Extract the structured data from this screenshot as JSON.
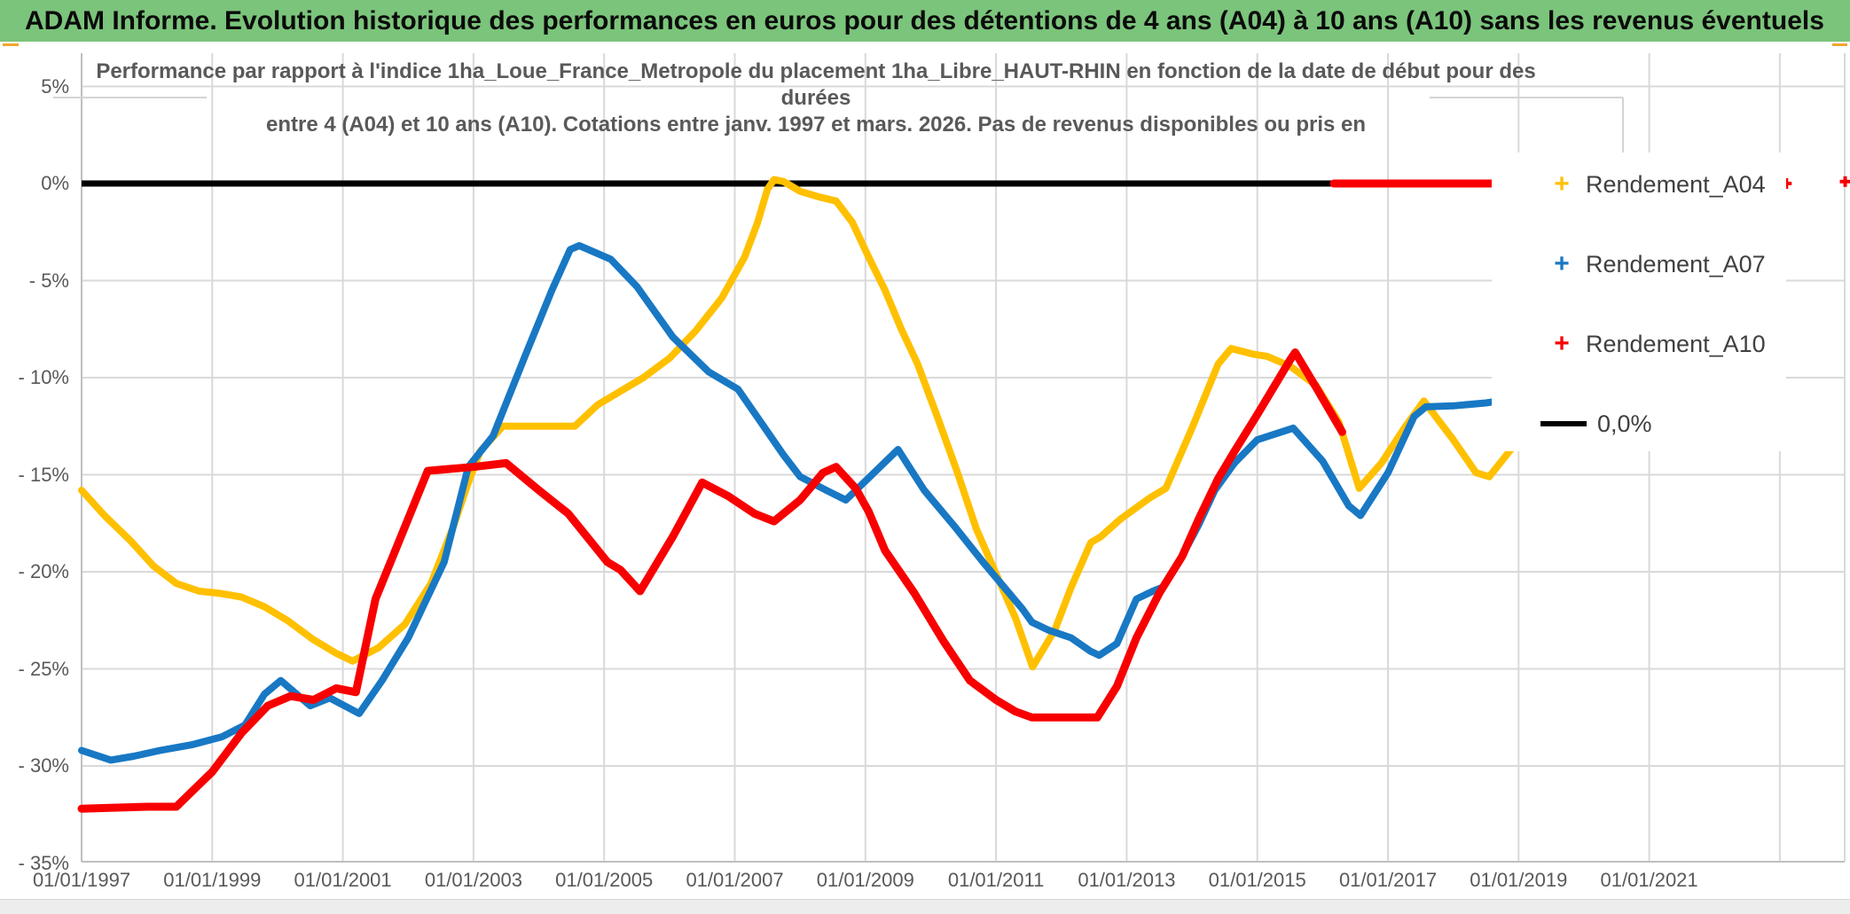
{
  "header": {
    "title": "ADAM Informe. Evolution historique des performances en euros pour des détentions de 4 ans (A04) à 10 ans (A10) sans les revenus éventuels",
    "bg_color": "#7BC47B"
  },
  "chart": {
    "title_lines": [
      "Performance par rapport à l'indice 1ha_Loue_France_Metropole du placement 1ha_Libre_HAUT-RHIN en fonction de la date de début pour des",
      "durées",
      "entre 4 (A04) et 10 ans (A10). Cotations entre janv. 1997 et mars. 2026. Pas de revenus disponibles ou pris en"
    ],
    "y_axis": {
      "ticks": [
        {
          "text": "5%",
          "value": 5
        },
        {
          "text": "0%",
          "value": 0
        },
        {
          "text": "- 5%",
          "value": -5
        },
        {
          "text": "- 10%",
          "value": -10
        },
        {
          "text": "- 15%",
          "value": -15
        },
        {
          "text": "- 20%",
          "value": -20
        },
        {
          "text": "- 25%",
          "value": -25
        },
        {
          "text": "- 30%",
          "value": -30
        },
        {
          "text": "- 35%",
          "value": -35
        }
      ]
    },
    "x_axis": {
      "ticks": [
        {
          "text": "01/01/1997",
          "year": 1997
        },
        {
          "text": "01/01/1999",
          "year": 1999
        },
        {
          "text": "01/01/2001",
          "year": 2001
        },
        {
          "text": "01/01/2003",
          "year": 2003
        },
        {
          "text": "01/01/2005",
          "year": 2005
        },
        {
          "text": "01/01/2007",
          "year": 2007
        },
        {
          "text": "01/01/2009",
          "year": 2009
        },
        {
          "text": "01/01/2011",
          "year": 2011
        },
        {
          "text": "01/01/2013",
          "year": 2013
        },
        {
          "text": "01/01/2015",
          "year": 2015
        },
        {
          "text": "01/01/2017",
          "year": 2017
        },
        {
          "text": "01/01/2019",
          "year": 2019
        },
        {
          "text": "01/01/2021",
          "year": 2021
        }
      ],
      "gridline_years": [
        1999,
        2001,
        2003,
        2005,
        2007,
        2009,
        2011,
        2013,
        2015,
        2017,
        2019,
        2021,
        2023
      ]
    },
    "legend": {
      "items": [
        {
          "label": "Rendement_A04",
          "marker": "plus",
          "color": "#FFC000"
        },
        {
          "label": "Rendement_A07",
          "marker": "plus",
          "color": "#1878C4"
        },
        {
          "label": "Rendement_A10",
          "marker": "plus",
          "color": "#F80000"
        },
        {
          "label": "0,0%",
          "marker": "line",
          "color": "#000000"
        }
      ]
    }
  },
  "chart_data": {
    "type": "line",
    "title": "Performance par rapport à l'indice 1ha_Loue_France_Metropole du placement 1ha_Libre_HAUT-RHIN en fonction de la date de début pour des durées entre 4 (A04) et 10 ans (A10). Cotations entre janv. 1997 et mars. 2026. Pas de revenus disponibles ou pris en",
    "xlabel": "",
    "ylabel": "",
    "xlim": [
      1997.0,
      2024.0
    ],
    "ylim": [
      -35,
      5
    ],
    "grid": true,
    "legend_position": "right",
    "x_unit": "decimal year (date de début)",
    "y_unit": "percent",
    "zero_reference_line": {
      "label": "0,0%",
      "value": 0,
      "color": "#000000",
      "x_end_year": 2018.9
    },
    "series": [
      {
        "name": "Rendement_A04",
        "color": "#FFC000",
        "points": [
          [
            1997.0,
            -15.8
          ],
          [
            1997.35,
            -17.1
          ],
          [
            1997.75,
            -18.4
          ],
          [
            1998.1,
            -19.7
          ],
          [
            1998.45,
            -20.6
          ],
          [
            1998.8,
            -21.0
          ],
          [
            1999.1,
            -21.1
          ],
          [
            1999.45,
            -21.3
          ],
          [
            1999.8,
            -21.8
          ],
          [
            2000.15,
            -22.5
          ],
          [
            2000.55,
            -23.5
          ],
          [
            2000.9,
            -24.2
          ],
          [
            2001.15,
            -24.6
          ],
          [
            2001.55,
            -23.9
          ],
          [
            2001.95,
            -22.7
          ],
          [
            2002.35,
            -20.6
          ],
          [
            2002.7,
            -17.6
          ],
          [
            2002.9,
            -15.6
          ],
          [
            2003.1,
            -13.8
          ],
          [
            2003.45,
            -12.5
          ],
          [
            2004.55,
            -12.5
          ],
          [
            2004.9,
            -11.4
          ],
          [
            2005.25,
            -10.7
          ],
          [
            2005.6,
            -10.0
          ],
          [
            2006.0,
            -9.0
          ],
          [
            2006.4,
            -7.6
          ],
          [
            2006.8,
            -5.9
          ],
          [
            2007.15,
            -3.8
          ],
          [
            2007.35,
            -2.0
          ],
          [
            2007.5,
            -0.3
          ],
          [
            2007.6,
            0.2
          ],
          [
            2007.75,
            0.1
          ],
          [
            2008.0,
            -0.4
          ],
          [
            2008.3,
            -0.7
          ],
          [
            2008.55,
            -0.9
          ],
          [
            2008.8,
            -2.0
          ],
          [
            2009.05,
            -3.8
          ],
          [
            2009.3,
            -5.5
          ],
          [
            2009.55,
            -7.5
          ],
          [
            2009.8,
            -9.3
          ],
          [
            2010.1,
            -12.0
          ],
          [
            2010.4,
            -14.8
          ],
          [
            2010.7,
            -17.8
          ],
          [
            2011.0,
            -20.1
          ],
          [
            2011.3,
            -22.4
          ],
          [
            2011.56,
            -24.9
          ],
          [
            2011.9,
            -23.0
          ],
          [
            2012.15,
            -20.8
          ],
          [
            2012.45,
            -18.5
          ],
          [
            2012.6,
            -18.2
          ],
          [
            2012.9,
            -17.3
          ],
          [
            2013.35,
            -16.2
          ],
          [
            2013.6,
            -15.7
          ],
          [
            2014.0,
            -12.6
          ],
          [
            2014.4,
            -9.3
          ],
          [
            2014.6,
            -8.5
          ],
          [
            2014.95,
            -8.8
          ],
          [
            2015.15,
            -8.9
          ],
          [
            2015.5,
            -9.4
          ],
          [
            2015.9,
            -10.4
          ],
          [
            2016.25,
            -12.3
          ],
          [
            2016.56,
            -15.7
          ],
          [
            2016.9,
            -14.4
          ],
          [
            2017.25,
            -12.6
          ],
          [
            2017.55,
            -11.2
          ],
          [
            2018.0,
            -13.2
          ],
          [
            2018.35,
            -14.9
          ],
          [
            2018.55,
            -15.1
          ],
          [
            2019.0,
            -13.2
          ],
          [
            2019.4,
            -10.9
          ],
          [
            2019.75,
            -9.6
          ]
        ]
      },
      {
        "name": "Rendement_A07",
        "color": "#1878C4",
        "points": [
          [
            1997.0,
            -29.2
          ],
          [
            1997.45,
            -29.7
          ],
          [
            1997.8,
            -29.5
          ],
          [
            1998.2,
            -29.2
          ],
          [
            1998.7,
            -28.9
          ],
          [
            1999.15,
            -28.5
          ],
          [
            1999.5,
            -27.9
          ],
          [
            1999.8,
            -26.3
          ],
          [
            2000.05,
            -25.6
          ],
          [
            2000.5,
            -26.9
          ],
          [
            2000.8,
            -26.5
          ],
          [
            2001.25,
            -27.3
          ],
          [
            2001.6,
            -25.6
          ],
          [
            2002.0,
            -23.4
          ],
          [
            2002.55,
            -19.5
          ],
          [
            2002.92,
            -14.6
          ],
          [
            2003.3,
            -13.0
          ],
          [
            2003.8,
            -8.8
          ],
          [
            2004.2,
            -5.5
          ],
          [
            2004.48,
            -3.4
          ],
          [
            2004.62,
            -3.2
          ],
          [
            2005.1,
            -3.9
          ],
          [
            2005.5,
            -5.3
          ],
          [
            2006.05,
            -7.9
          ],
          [
            2006.6,
            -9.7
          ],
          [
            2007.05,
            -10.6
          ],
          [
            2007.4,
            -12.3
          ],
          [
            2007.75,
            -14.0
          ],
          [
            2008.0,
            -15.1
          ],
          [
            2008.4,
            -15.8
          ],
          [
            2008.7,
            -16.3
          ],
          [
            2009.1,
            -15.0
          ],
          [
            2009.5,
            -13.7
          ],
          [
            2009.9,
            -15.8
          ],
          [
            2010.35,
            -17.6
          ],
          [
            2010.8,
            -19.5
          ],
          [
            2011.1,
            -20.7
          ],
          [
            2011.4,
            -21.9
          ],
          [
            2011.55,
            -22.6
          ],
          [
            2011.8,
            -23.0
          ],
          [
            2012.15,
            -23.4
          ],
          [
            2012.45,
            -24.1
          ],
          [
            2012.58,
            -24.3
          ],
          [
            2012.85,
            -23.7
          ],
          [
            2013.15,
            -21.4
          ],
          [
            2013.4,
            -21.0
          ],
          [
            2013.55,
            -20.8
          ],
          [
            2013.8,
            -19.5
          ],
          [
            2014.1,
            -17.6
          ],
          [
            2014.35,
            -15.8
          ],
          [
            2014.65,
            -14.4
          ],
          [
            2015.0,
            -13.2
          ],
          [
            2015.55,
            -12.6
          ],
          [
            2016.0,
            -14.3
          ],
          [
            2016.4,
            -16.6
          ],
          [
            2016.58,
            -17.1
          ],
          [
            2017.0,
            -14.9
          ],
          [
            2017.4,
            -12.0
          ],
          [
            2017.58,
            -11.5
          ],
          [
            2018.0,
            -11.45
          ],
          [
            2018.5,
            -11.3
          ],
          [
            2018.7,
            -11.2
          ],
          [
            2019.05,
            -9.9
          ]
        ]
      },
      {
        "name": "Rendement_A10",
        "color": "#F80000",
        "points": [
          [
            1997.0,
            -32.2
          ],
          [
            1997.5,
            -32.15
          ],
          [
            1998.0,
            -32.1
          ],
          [
            1998.45,
            -32.1
          ],
          [
            1999.0,
            -30.3
          ],
          [
            1999.45,
            -28.3
          ],
          [
            1999.85,
            -26.9
          ],
          [
            2000.2,
            -26.4
          ],
          [
            2000.55,
            -26.6
          ],
          [
            2000.9,
            -26.0
          ],
          [
            2001.2,
            -26.2
          ],
          [
            2001.5,
            -21.4
          ],
          [
            2002.3,
            -14.8
          ],
          [
            2003.0,
            -14.6
          ],
          [
            2003.5,
            -14.4
          ],
          [
            2004.0,
            -15.8
          ],
          [
            2004.45,
            -17.0
          ],
          [
            2005.05,
            -19.5
          ],
          [
            2005.25,
            -19.9
          ],
          [
            2005.55,
            -21.0
          ],
          [
            2006.05,
            -18.2
          ],
          [
            2006.5,
            -15.4
          ],
          [
            2006.9,
            -16.1
          ],
          [
            2007.3,
            -17.0
          ],
          [
            2007.6,
            -17.4
          ],
          [
            2008.0,
            -16.3
          ],
          [
            2008.35,
            -14.9
          ],
          [
            2008.55,
            -14.6
          ],
          [
            2008.85,
            -15.7
          ],
          [
            2009.05,
            -16.9
          ],
          [
            2009.3,
            -18.9
          ],
          [
            2009.75,
            -21.1
          ],
          [
            2010.2,
            -23.6
          ],
          [
            2010.6,
            -25.6
          ],
          [
            2011.0,
            -26.6
          ],
          [
            2011.3,
            -27.2
          ],
          [
            2011.55,
            -27.5
          ],
          [
            2012.55,
            -27.5
          ],
          [
            2012.85,
            -25.9
          ],
          [
            2013.15,
            -23.4
          ],
          [
            2013.5,
            -21.1
          ],
          [
            2013.85,
            -19.2
          ],
          [
            2014.1,
            -17.3
          ],
          [
            2014.4,
            -15.2
          ],
          [
            2014.65,
            -13.8
          ],
          [
            2015.0,
            -11.9
          ],
          [
            2015.5,
            -9.1
          ],
          [
            2015.58,
            -8.7
          ],
          [
            2015.9,
            -10.5
          ],
          [
            2016.3,
            -12.8
          ]
        ]
      },
      {
        "name": "Rendement_A10_zero_plateau",
        "color": "#F80000",
        "points": [
          [
            2016.17,
            0.0
          ],
          [
            2018.95,
            0.0
          ]
        ]
      }
    ],
    "isolated_markers": [
      {
        "series": "Rendement_A10",
        "x": 2023.1,
        "y": 0.0
      },
      {
        "series": "Rendement_A10",
        "x": 2024.0,
        "y": 0.1
      }
    ]
  },
  "colors": {
    "accent_orange": "#F0A62E",
    "gridline": "#D9D9D9",
    "axis_border": "#BFBFBF",
    "title_text": "#595959",
    "tick_text": "#595959",
    "legend_text": "#404040",
    "zero_line": "#000000"
  }
}
